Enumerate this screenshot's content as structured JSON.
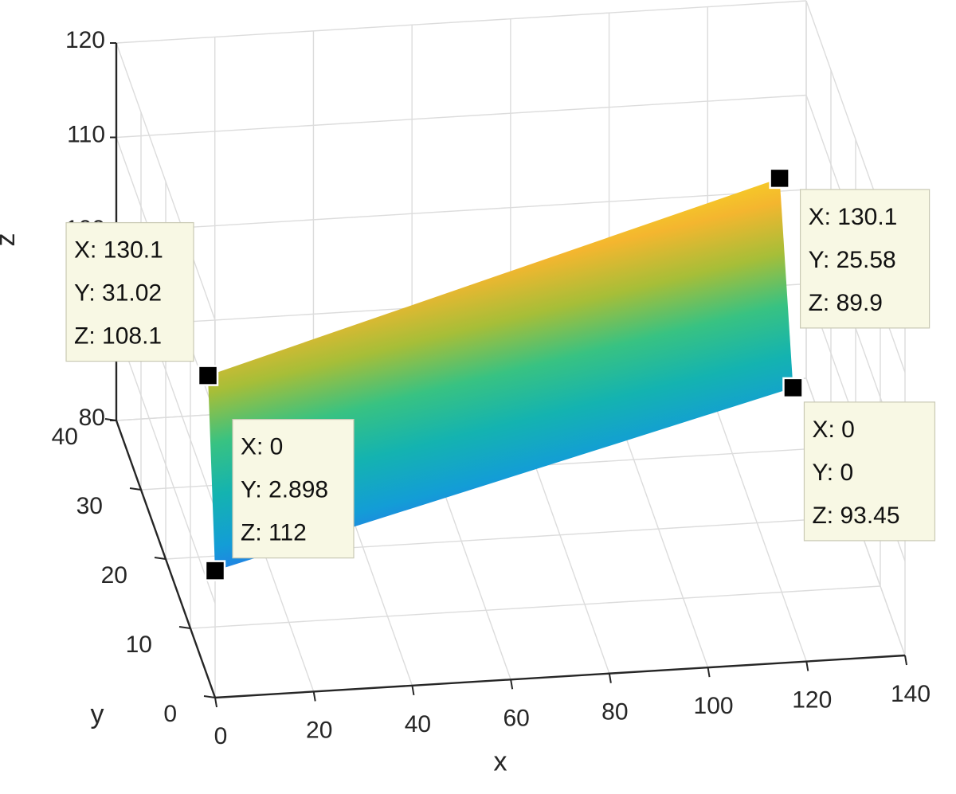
{
  "chart_data": {
    "type": "surface",
    "xlabel": "x",
    "ylabel": "y",
    "zlabel": "z",
    "xlim": [
      0,
      140
    ],
    "ylim": [
      0,
      40
    ],
    "zlim": [
      80,
      120
    ],
    "xticks": [
      0,
      20,
      40,
      60,
      80,
      100,
      120,
      140
    ],
    "yticks": [
      0,
      10,
      20,
      30,
      40
    ],
    "zticks": [
      80,
      90,
      100,
      110,
      120
    ],
    "grid": true,
    "colormap": [
      "#3e26a8",
      "#2f69f1",
      "#139dd6",
      "#14b3b0",
      "#38c282",
      "#a6be38",
      "#f4b62f",
      "#f7de1f",
      "#f9fb0e"
    ],
    "surface_corners": [
      {
        "x": 0,
        "y": 0,
        "z": 93.45
      },
      {
        "x": 0,
        "y": 2.898,
        "z": 112
      },
      {
        "x": 130.1,
        "y": 31.02,
        "z": 108.1
      },
      {
        "x": 130.1,
        "y": 25.58,
        "z": 89.9
      }
    ],
    "datatips": [
      {
        "lines": [
          "X: 0",
          "Y: 2.898",
          "Z: 112"
        ]
      },
      {
        "lines": [
          "X: 130.1",
          "Y: 31.02",
          "Z: 108.1"
        ]
      },
      {
        "lines": [
          "X: 130.1",
          "Y: 25.58",
          "Z: 89.9"
        ]
      },
      {
        "lines": [
          "X: 0",
          "Y: 0",
          "Z: 93.45"
        ]
      }
    ]
  }
}
